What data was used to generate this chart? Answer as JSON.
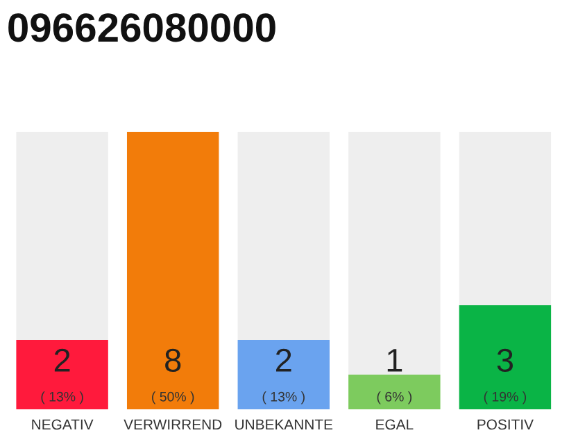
{
  "chart_data": {
    "type": "bar",
    "title": "096626080000",
    "stacked": true,
    "categories": [
      "NEGATIV",
      "VERWIRREND",
      "UNBEKANNTE",
      "EGAL",
      "POSITIV"
    ],
    "series": [
      {
        "colors": [
          "#ff1a3c",
          "#f27c0a",
          "#6aa3ef",
          "#7dcb5e",
          "#0ab446"
        ],
        "values": [
          2,
          8,
          2,
          1,
          3
        ],
        "value_labels": [
          "2",
          "8",
          "2",
          "1",
          "3"
        ]
      },
      {
        "color": "#eeeeee",
        "values": [
          6,
          0,
          6,
          7,
          5
        ]
      }
    ],
    "annotations": [
      {
        "text": "( 13% )",
        "x": "NEGATIV",
        "y": 0
      },
      {
        "text": "( 50% )",
        "x": "VERWIRREND",
        "y": 0
      },
      {
        "text": "( 13% )",
        "x": "UNBEKANNTE",
        "y": 0
      },
      {
        "text": "( 6% )",
        "x": "EGAL",
        "y": 0
      },
      {
        "text": "( 19% )",
        "x": "POSITIV",
        "y": 0
      }
    ],
    "grid": false,
    "legend": false
  }
}
